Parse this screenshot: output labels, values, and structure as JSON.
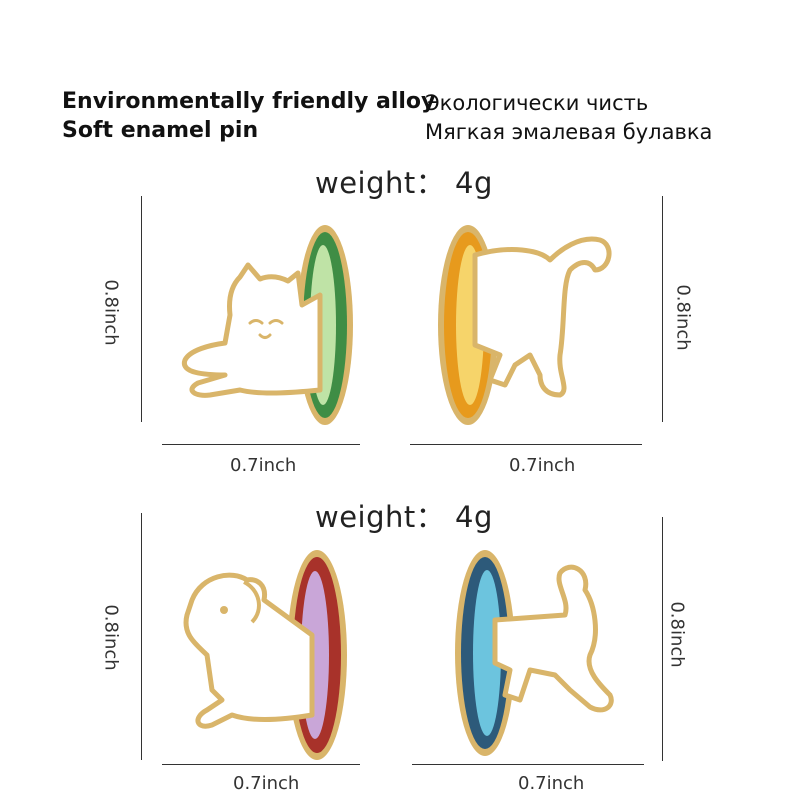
{
  "header": {
    "line1_en": "Environmentally friendly alloy",
    "line2_en": "Soft enamel pin",
    "line1_ru": "Экологически чисть",
    "line2_ru": "Мягкая эмалевая булавка"
  },
  "weights": [
    "weight： 4g",
    "weight： 4g"
  ],
  "dimensions": {
    "height": "0.8inch",
    "width": "0.7inch"
  },
  "pins": [
    {
      "animal": "cat",
      "ring": "green",
      "ring_color": "#3f8d45",
      "inner_color": "#bfe3a6"
    },
    {
      "animal": "cat",
      "ring": "orange",
      "ring_color": "#e79a1d",
      "inner_color": "#f6d46a"
    },
    {
      "animal": "dog",
      "ring": "red",
      "ring_color": "#a8322a",
      "inner_color": "#c9a6d8"
    },
    {
      "animal": "dog",
      "ring": "blue",
      "ring_color": "#2d5a7a",
      "inner_color": "#6cc4de"
    }
  ],
  "colors": {
    "gold": "#d9b56a",
    "enamel": "#ffffff"
  }
}
